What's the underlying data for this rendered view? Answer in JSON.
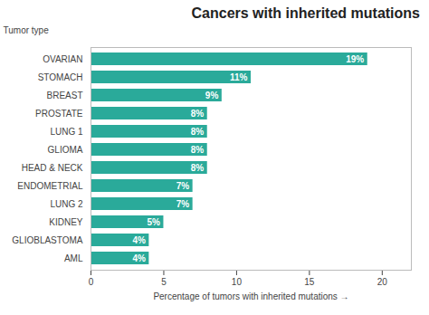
{
  "chart_data": {
    "type": "bar",
    "orientation": "horizontal",
    "title": "Cancers with inherited mutations",
    "ylabel": "Tumor type",
    "xlabel": "Percentage of tumors with inherited mutations",
    "categories": [
      "AML",
      "GLIOBLASTOMA",
      "KIDNEY",
      "LUNG 2",
      "ENDOMETRIAL",
      "HEAD & NECK",
      "GLIOMA",
      "LUNG 1",
      "PROSTATE",
      "BREAST",
      "STOMACH",
      "OVARIAN"
    ],
    "values": [
      4,
      4,
      5,
      7,
      7,
      8,
      8,
      8,
      8,
      9,
      11,
      19
    ],
    "value_labels": [
      "4%",
      "4%",
      "5%",
      "7%",
      "7%",
      "8%",
      "8%",
      "8%",
      "8%",
      "9%",
      "11%",
      "19%"
    ],
    "data_labels": true,
    "color": "#2aaa9a",
    "xlim": [
      0,
      22
    ],
    "xticks": [
      0,
      5,
      10,
      15,
      20
    ],
    "grid": false
  }
}
